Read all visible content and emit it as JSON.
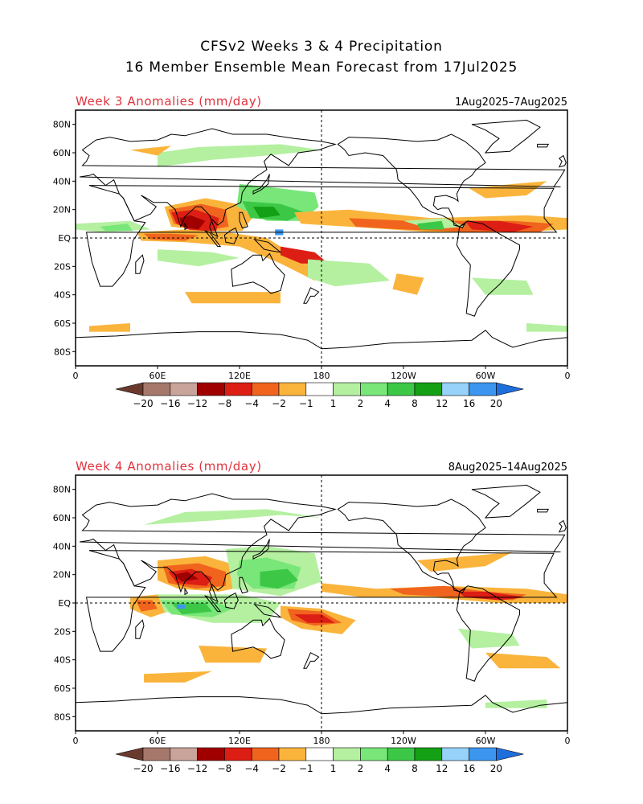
{
  "title": {
    "line1": "CFSv2 Weeks 3 & 4 Precipitation",
    "line2": "16 Member Ensemble Mean Forecast from 17Jul2025"
  },
  "panels": [
    {
      "label": "Week 3 Anomalies (mm/day)",
      "dates": "1Aug2025–7Aug2025"
    },
    {
      "label": "Week 4 Anomalies (mm/day)",
      "dates": "8Aug2025–14Aug2025"
    }
  ],
  "map_axes": {
    "lat_labels": [
      "80N",
      "60N",
      "40N",
      "20N",
      "EQ",
      "20S",
      "40S",
      "60S",
      "80S"
    ],
    "lat_values": [
      80,
      60,
      40,
      20,
      0,
      -20,
      -40,
      -60,
      -80
    ],
    "lon_labels": [
      "0",
      "60E",
      "120E",
      "180",
      "120W",
      "60W",
      "0"
    ],
    "lon_values": [
      0,
      60,
      120,
      180,
      240,
      300,
      360
    ],
    "lat_range": [
      -90,
      90
    ],
    "lon_range": [
      0,
      360
    ]
  },
  "colorbar": {
    "labels": [
      "−20",
      "−16",
      "−12",
      "−8",
      "−4",
      "−2",
      "−1",
      "1",
      "2",
      "4",
      "8",
      "12",
      "16",
      "20"
    ],
    "colors": [
      "#6b3a2e",
      "#a5786b",
      "#c9a49a",
      "#a00000",
      "#dc1e14",
      "#f0641e",
      "#fab43c",
      "#ffffff",
      "#b4f0a0",
      "#78e678",
      "#3cc846",
      "#14a014",
      "#96d2fa",
      "#3c96f0",
      "#1e6edc"
    ]
  },
  "anomaly_colors": {
    "dry1": "#fab43c",
    "dry2": "#f0641e",
    "dry3": "#dc1e14",
    "dry4": "#a00000",
    "wet1": "#b4f0a0",
    "wet2": "#78e678",
    "wet3": "#3cc846",
    "wet4": "#14a014",
    "wet5": "#3c96f0"
  }
}
